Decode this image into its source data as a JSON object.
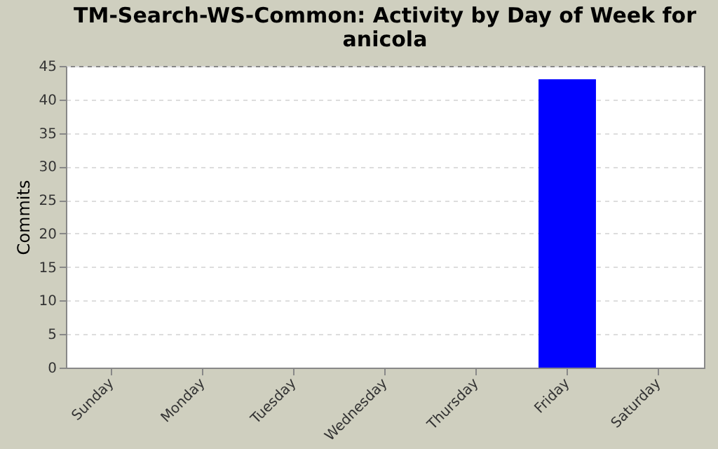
{
  "chart_data": {
    "type": "bar",
    "title": "TM-Search-WS-Common: Activity by Day of Week for anicola",
    "ylabel": "Commits",
    "categories": [
      "Sunday",
      "Monday",
      "Tuesday",
      "Wednesday",
      "Thursday",
      "Friday",
      "Saturday"
    ],
    "values": [
      0,
      0,
      0,
      0,
      0,
      43,
      0
    ],
    "color": "#0000ff",
    "ylim": [
      0,
      45
    ],
    "yticks": [
      0,
      5,
      10,
      15,
      20,
      25,
      30,
      35,
      40,
      45
    ],
    "grid": "y"
  }
}
